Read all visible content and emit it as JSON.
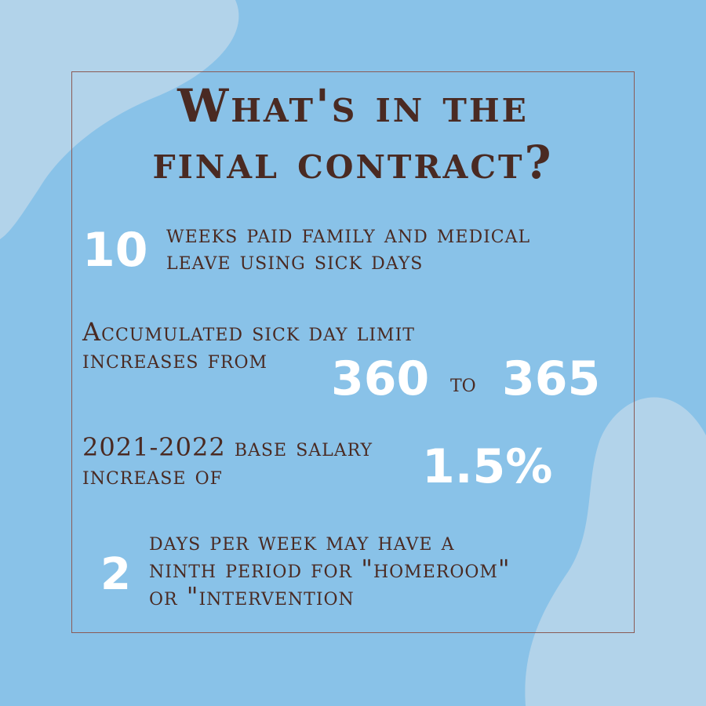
{
  "title": {
    "line1": "What's in the",
    "line2": "final contract?"
  },
  "items": [
    {
      "number": "10",
      "line1": "weeks paid family and medical",
      "line2": "leave using sick days"
    },
    {
      "line1": "Accumulated sick day limit",
      "line2": "increases from",
      "from_value": "360",
      "connector": "to",
      "to_value": "365"
    },
    {
      "line1": "2021-2022 base salary",
      "line2": "increase of",
      "value": "1.5%"
    },
    {
      "number": "2",
      "line1": "days per week may have a",
      "line2": "ninth period for \"homeroom\"",
      "line3": "or \"intervention"
    }
  ],
  "colors": {
    "background": "#89c2e8",
    "blob": "#b2d3ea",
    "text": "#4a2a22",
    "highlight": "#ffffff",
    "border": "#8a5a55"
  }
}
